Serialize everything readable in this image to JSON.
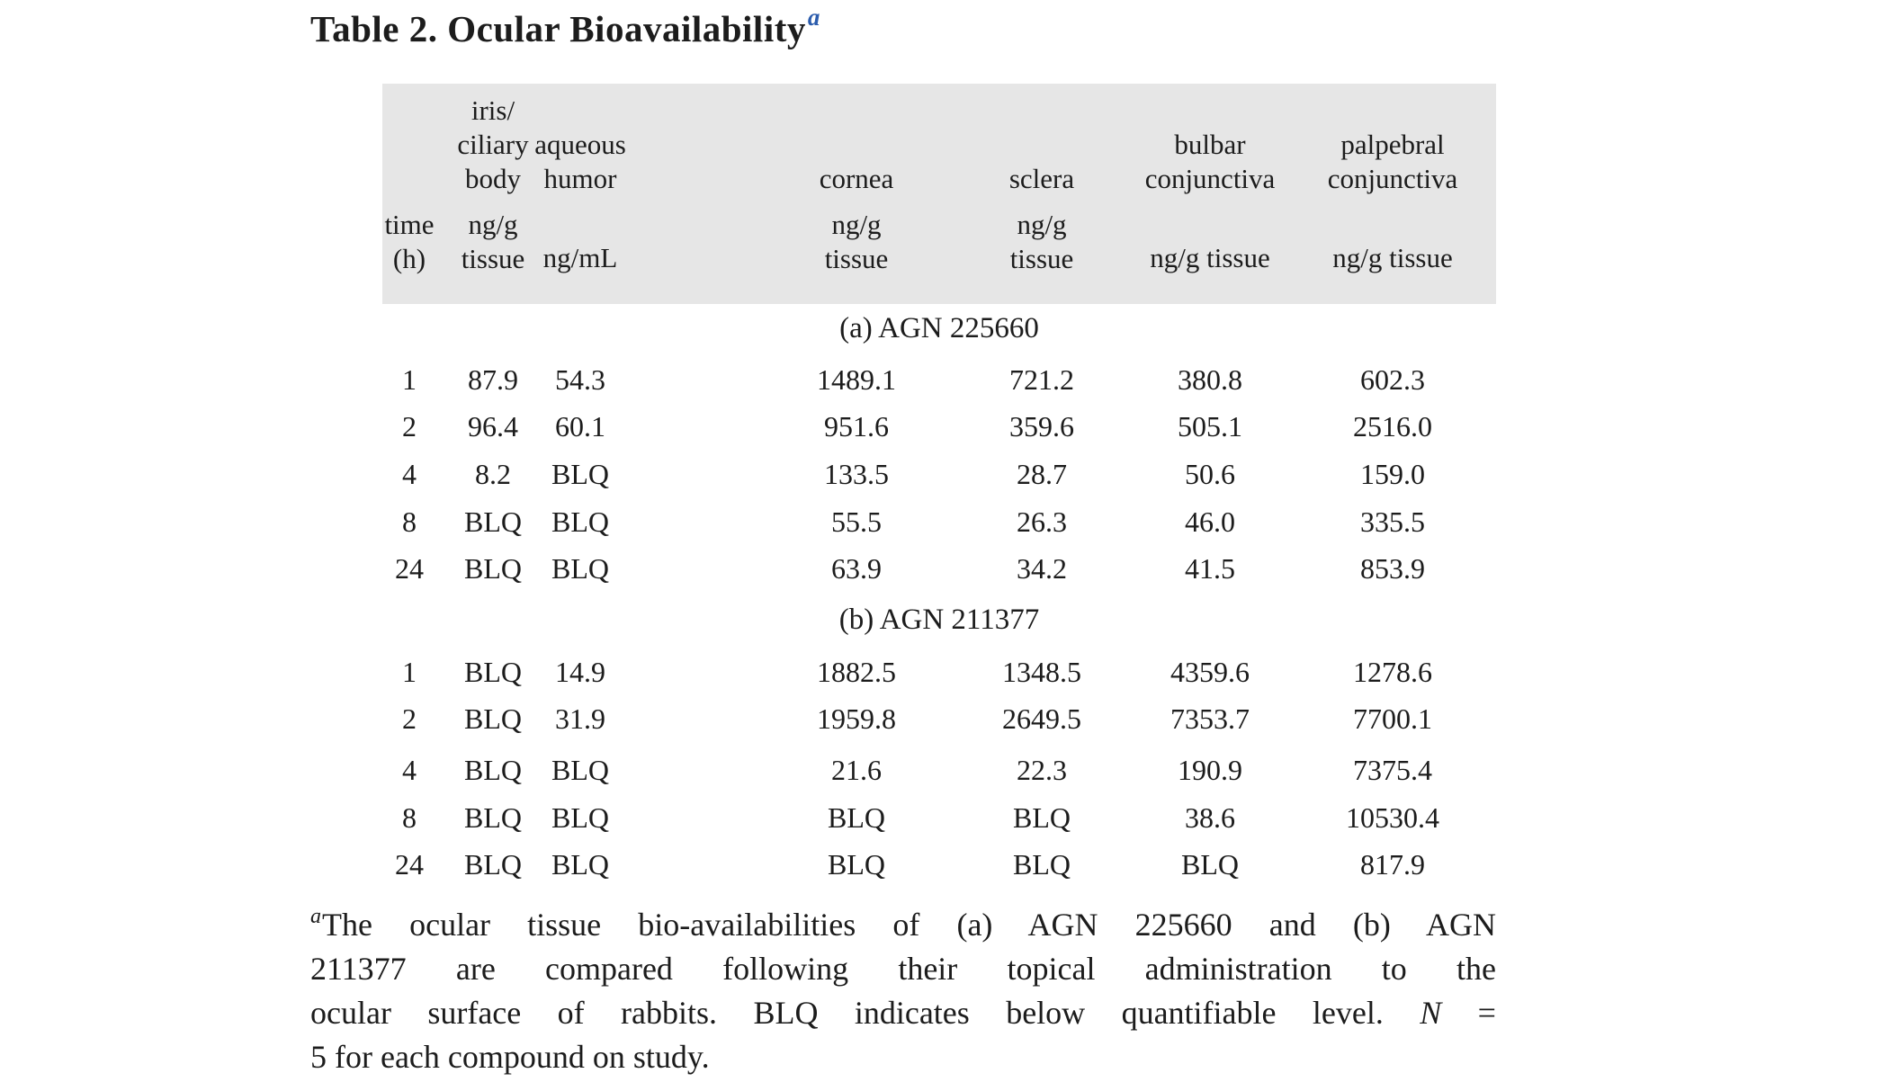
{
  "colors": {
    "page_background": "#ffffff",
    "header_background": "#e6e6e6",
    "text": "#1c1c1c",
    "title_marker_blue": "#2b5cad"
  },
  "title": {
    "text": "Table 2. Ocular Bioavailability",
    "marker": "a"
  },
  "table": {
    "column_groups": [
      {
        "lines": [
          "iris/",
          "ciliary",
          "body"
        ]
      },
      {
        "lines": [
          "aqueous",
          "humor"
        ]
      },
      {
        "lines": [
          "cornea"
        ]
      },
      {
        "lines": [
          "sclera"
        ]
      },
      {
        "lines": [
          "bulbar",
          "conjunctiva"
        ]
      },
      {
        "lines": [
          "palpebral",
          "conjunctiva"
        ]
      }
    ],
    "column_units": [
      {
        "line1": "time",
        "line2": "(h)"
      },
      {
        "line1": "ng/g",
        "line2": "tissue"
      },
      {
        "line1": "ng/mL"
      },
      {
        "line1": "ng/g",
        "line2": "tissue"
      },
      {
        "line1": "ng/g",
        "line2": "tissue"
      },
      {
        "line1": "ng/g tissue"
      },
      {
        "line1": "ng/g tissue"
      }
    ],
    "sections": [
      {
        "label": "(a) AGN 225660",
        "rows": [
          [
            "1",
            "87.9",
            "54.3",
            "1489.1",
            "721.2",
            "380.8",
            "602.3"
          ],
          [
            "2",
            "96.4",
            "60.1",
            "951.6",
            "359.6",
            "505.1",
            "2516.0"
          ],
          [
            "4",
            "8.2",
            "BLQ",
            "133.5",
            "28.7",
            "50.6",
            "159.0"
          ],
          [
            "8",
            "BLQ",
            "BLQ",
            "55.5",
            "26.3",
            "46.0",
            "335.5"
          ],
          [
            "24",
            "BLQ",
            "BLQ",
            "63.9",
            "34.2",
            "41.5",
            "853.9"
          ]
        ]
      },
      {
        "label": "(b) AGN 211377",
        "rows": [
          [
            "1",
            "BLQ",
            "14.9",
            "1882.5",
            "1348.5",
            "4359.6",
            "1278.6"
          ],
          [
            "2",
            "BLQ",
            "31.9",
            "1959.8",
            "2649.5",
            "7353.7",
            "7700.1"
          ],
          [
            "4",
            "BLQ",
            "BLQ",
            "21.6",
            "22.3",
            "190.9",
            "7375.4"
          ],
          [
            "8",
            "BLQ",
            "BLQ",
            "BLQ",
            "BLQ",
            "38.6",
            "10530.4"
          ],
          [
            "24",
            "BLQ",
            "BLQ",
            "BLQ",
            "BLQ",
            "BLQ",
            "817.9"
          ]
        ]
      }
    ]
  },
  "footnote": {
    "marker": "a",
    "line1": "The ocular tissue bio-availabilities of (a) AGN 225660 and (b) AGN",
    "line2": "211377 are compared following their topical administration to the",
    "line3_pre": "ocular surface of rabbits. BLQ indicates below quantifiable level. ",
    "line3_n": "N",
    "line3_post": " =",
    "line4": "5 for each compound on study."
  }
}
